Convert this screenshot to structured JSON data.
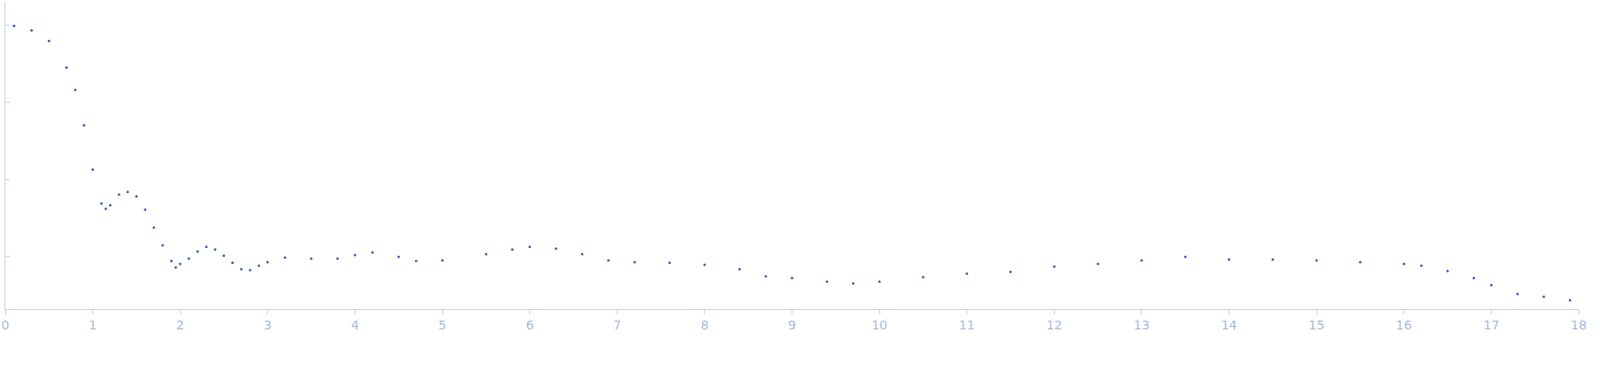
{
  "chart_data": {
    "type": "scatter",
    "marker": "dot",
    "color": "#3b6cc0",
    "log": "y",
    "grid": false,
    "tick_labels": "x",
    "xlim": [
      0,
      18
    ],
    "xticks": [
      0,
      1,
      2,
      3,
      4,
      5,
      6,
      7,
      8,
      9,
      10,
      11,
      12,
      13,
      14,
      15,
      16,
      17,
      18
    ],
    "ylim": [
      0.00021,
      2.0
    ],
    "yticks": [
      0.001,
      0.01,
      0.1,
      1
    ],
    "x": [
      0.1,
      0.3,
      0.5,
      0.7,
      0.8,
      0.9,
      1.0,
      1.1,
      1.15,
      1.2,
      1.3,
      1.4,
      1.5,
      1.6,
      1.7,
      1.8,
      1.9,
      1.95,
      2.0,
      2.1,
      2.2,
      2.3,
      2.4,
      2.5,
      2.6,
      2.7,
      2.8,
      2.9,
      3.0,
      3.2,
      3.5,
      3.8,
      4.0,
      4.2,
      4.5,
      4.7,
      5.0,
      5.5,
      5.8,
      6.0,
      6.3,
      6.6,
      6.9,
      7.2,
      7.6,
      8.0,
      8.4,
      8.7,
      9.0,
      9.4,
      9.7,
      10.0,
      10.5,
      11.0,
      11.5,
      12.0,
      12.5,
      13.0,
      13.5,
      14.0,
      14.5,
      15.0,
      15.5,
      16.0,
      16.2,
      16.5,
      16.8,
      17.0,
      17.3,
      17.6,
      17.9
    ],
    "values": [
      0.974,
      0.853,
      0.621,
      0.281,
      0.145,
      0.0502,
      0.0134,
      0.0049,
      0.00418,
      0.00464,
      0.00638,
      0.0069,
      0.00605,
      0.00407,
      0.00239,
      0.00141,
      0.000877,
      0.000728,
      0.000809,
      0.000948,
      0.00117,
      0.00134,
      0.00124,
      0.00103,
      0.000832,
      0.00069,
      0.000673,
      0.000767,
      0.000853,
      0.000975,
      0.000948,
      0.000948,
      0.00105,
      0.00114,
      0.001,
      0.000877,
      0.0009,
      0.00108,
      0.00124,
      0.00134,
      0.00127,
      0.00108,
      0.0009,
      0.000853,
      0.000832,
      0.000788,
      0.00069,
      0.000558,
      0.00053,
      0.000477,
      0.000452,
      0.000477,
      0.000544,
      0.000605,
      0.000638,
      0.000748,
      0.000809,
      0.0009,
      0.001,
      0.000924,
      0.000924,
      0.0009,
      0.000853,
      0.000809,
      0.000767,
      0.000655,
      0.00053,
      0.000429,
      0.000329,
      0.000304,
      0.000274
    ]
  }
}
